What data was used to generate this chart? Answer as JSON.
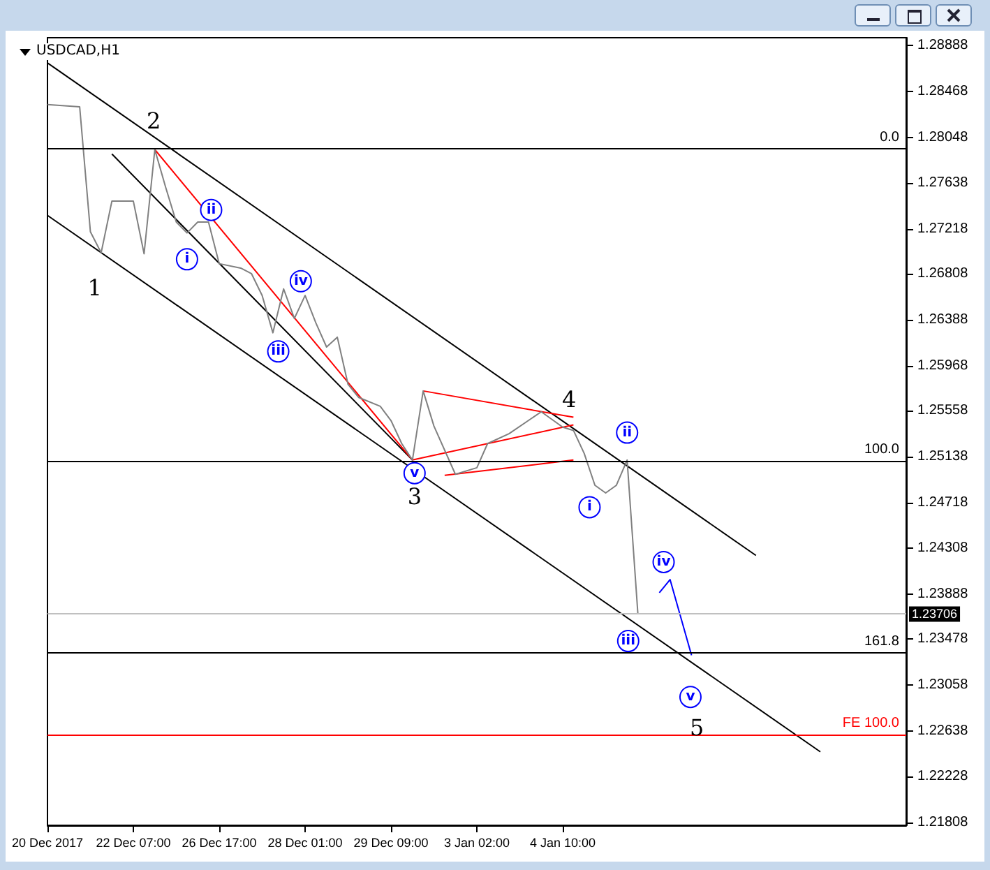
{
  "chart_data": {
    "type": "line",
    "title": "USDCAD,H1",
    "categories": [
      "20 Dec 2017",
      null,
      null,
      null,
      null,
      null,
      null,
      null,
      "22 Dec 07:00",
      null,
      null,
      null,
      null,
      null,
      null,
      null,
      "26 Dec 17:00",
      null,
      null,
      null,
      null,
      null,
      null,
      null,
      "28 Dec 01:00",
      null,
      null,
      null,
      null,
      null,
      null,
      null,
      "29 Dec 09:00",
      null,
      null,
      null,
      null,
      null,
      null,
      null,
      "3 Jan 02:00",
      null,
      null,
      null,
      null,
      null,
      null,
      null,
      "4 Jan 10:00",
      null,
      null,
      null,
      null,
      null,
      null,
      null,
      null,
      null,
      null,
      null,
      null,
      null,
      null,
      null,
      null,
      null,
      null,
      null,
      null,
      null,
      null,
      null,
      null,
      null,
      null,
      null,
      null,
      null,
      null,
      null,
      null
    ],
    "ylim": [
      1.2178,
      1.2896
    ],
    "yticks": [
      1.21808,
      1.22228,
      1.22638,
      1.23058,
      1.23478,
      1.23888,
      1.24308,
      1.24718,
      1.25138,
      1.25558,
      1.25968,
      1.26388,
      1.26808,
      1.27218,
      1.27638,
      1.28048,
      1.28468,
      1.28888
    ],
    "series": [
      {
        "color": "#808080",
        "values": [
          1.2835,
          null,
          null,
          1.2833,
          1.2719,
          1.27,
          1.2747,
          null,
          1.2747,
          1.2699,
          1.2794,
          1.276,
          1.2728,
          1.2718,
          1.2728,
          1.2728,
          1.269,
          null,
          1.2686,
          1.2681,
          1.2661,
          1.2627,
          1.2667,
          1.264,
          1.2661,
          1.2636,
          1.2614,
          1.2623,
          1.258,
          1.2568,
          null,
          1.256,
          1.2547,
          1.2526,
          1.2511,
          1.2574,
          1.2542,
          null,
          1.2498,
          null,
          1.2504,
          1.2526,
          null,
          1.2535,
          null,
          null,
          1.2555,
          null,
          1.2541,
          1.2538,
          1.2517,
          1.2488,
          1.2481,
          1.2488,
          1.2511,
          1.2371,
          null,
          null,
          null,
          null,
          null,
          null,
          null,
          null,
          null,
          null,
          null,
          null,
          null,
          null,
          null,
          null,
          null,
          null,
          null,
          null,
          null,
          null,
          null,
          null,
          null
        ]
      },
      {
        "color": "#000000",
        "values": [
          1.2873,
          null,
          null,
          null,
          null,
          null,
          null,
          null,
          null,
          null,
          null,
          null,
          null,
          null,
          null,
          null,
          null,
          null,
          null,
          null,
          null,
          null,
          null,
          null,
          null,
          null,
          null,
          null,
          null,
          null,
          null,
          null,
          null,
          null,
          null,
          null,
          null,
          null,
          null,
          null,
          null,
          null,
          null,
          null,
          null,
          null,
          null,
          null,
          null,
          null,
          null,
          null,
          null,
          null,
          null,
          null,
          null,
          null,
          null,
          null,
          null,
          null,
          null,
          null,
          null,
          null,
          1.2424,
          null,
          null,
          null,
          null,
          null,
          null,
          null,
          null,
          null,
          null,
          null,
          null,
          null,
          null
        ]
      },
      {
        "color": "#000000",
        "values": [
          1.2734,
          null,
          null,
          null,
          null,
          null,
          null,
          null,
          null,
          null,
          null,
          null,
          null,
          null,
          null,
          null,
          null,
          null,
          null,
          null,
          null,
          null,
          null,
          null,
          null,
          null,
          null,
          null,
          null,
          null,
          null,
          null,
          null,
          null,
          null,
          null,
          null,
          null,
          null,
          null,
          null,
          null,
          null,
          null,
          null,
          null,
          null,
          null,
          null,
          null,
          null,
          null,
          null,
          null,
          null,
          null,
          null,
          null,
          null,
          null,
          null,
          null,
          null,
          null,
          null,
          null,
          null,
          null,
          null,
          null,
          null,
          null,
          1.2245,
          null,
          null,
          null,
          null,
          null,
          null,
          null,
          null
        ]
      },
      {
        "color": "#000000",
        "values": [
          null,
          null,
          null,
          null,
          null,
          null,
          1.279,
          null,
          null,
          null,
          null,
          null,
          null,
          null,
          null,
          null,
          null,
          null,
          null,
          null,
          null,
          null,
          null,
          null,
          null,
          null,
          null,
          null,
          null,
          null,
          null,
          null,
          null,
          null,
          1.2511,
          null,
          null,
          null,
          null,
          null,
          null,
          null,
          null,
          null,
          null,
          null,
          null,
          null,
          null,
          null,
          null,
          null,
          null,
          null,
          null,
          null,
          null,
          null,
          null,
          null,
          null,
          null,
          null,
          null,
          null,
          null,
          null,
          null,
          null,
          null,
          null,
          null,
          null,
          null,
          null,
          null,
          null,
          null,
          null,
          null,
          null
        ]
      },
      {
        "color": "#ff0000",
        "values": [
          null,
          null,
          null,
          null,
          null,
          null,
          null,
          null,
          null,
          null,
          1.2794,
          null,
          null,
          null,
          null,
          null,
          null,
          null,
          null,
          null,
          null,
          null,
          null,
          null,
          null,
          null,
          null,
          null,
          null,
          null,
          null,
          null,
          null,
          null,
          1.2511,
          null,
          null,
          null,
          null,
          null,
          null,
          null,
          null,
          null,
          null,
          null,
          null,
          null,
          null,
          null,
          null,
          null,
          null,
          null,
          null,
          null,
          null,
          null,
          null,
          null,
          null,
          null,
          null,
          null,
          null,
          null,
          null,
          null,
          null,
          null,
          null,
          null,
          null,
          null,
          null,
          null,
          null,
          null,
          null,
          null,
          null
        ]
      },
      {
        "color": "#ff0000",
        "values": [
          null,
          null,
          null,
          null,
          null,
          null,
          null,
          null,
          null,
          null,
          null,
          null,
          null,
          null,
          null,
          null,
          null,
          null,
          null,
          null,
          null,
          null,
          null,
          null,
          null,
          null,
          null,
          null,
          null,
          null,
          null,
          null,
          null,
          null,
          null,
          1.2574,
          null,
          null,
          null,
          null,
          null,
          null,
          null,
          null,
          null,
          null,
          null,
          null,
          null,
          1.255,
          null,
          null,
          null,
          null,
          null,
          null,
          null,
          null,
          null,
          null,
          null,
          null,
          null,
          null,
          null,
          null,
          null,
          null,
          null,
          null,
          null,
          null,
          null,
          null,
          null,
          null,
          null,
          null,
          null,
          null,
          null
        ]
      },
      {
        "color": "#ff0000",
        "values": [
          null,
          null,
          null,
          null,
          null,
          null,
          null,
          null,
          null,
          null,
          null,
          null,
          null,
          null,
          null,
          null,
          null,
          null,
          null,
          null,
          null,
          null,
          null,
          null,
          null,
          null,
          null,
          null,
          null,
          null,
          null,
          null,
          null,
          null,
          null,
          null,
          null,
          1.2497,
          null,
          null,
          null,
          null,
          null,
          null,
          null,
          null,
          null,
          null,
          null,
          1.2511,
          null,
          null,
          null,
          null,
          null,
          null,
          null,
          null,
          null,
          null,
          null,
          null,
          null,
          null,
          null,
          null,
          null,
          null,
          null,
          null,
          null,
          null,
          null,
          null,
          null,
          null,
          null,
          null,
          null,
          null,
          null
        ]
      },
      {
        "color": "#ff0000",
        "values": [
          null,
          null,
          null,
          null,
          null,
          null,
          null,
          null,
          null,
          null,
          null,
          null,
          null,
          null,
          null,
          null,
          null,
          null,
          null,
          null,
          null,
          null,
          null,
          null,
          null,
          null,
          null,
          null,
          null,
          null,
          null,
          null,
          null,
          null,
          1.2511,
          null,
          null,
          null,
          null,
          null,
          null,
          null,
          null,
          null,
          null,
          null,
          null,
          null,
          null,
          1.2543,
          null,
          null,
          null,
          null,
          null,
          null,
          null,
          null,
          null,
          null,
          null,
          null,
          null,
          null,
          null,
          null,
          null,
          null,
          null,
          null,
          null,
          null,
          null,
          null,
          null,
          null,
          null,
          null,
          null,
          null,
          null
        ]
      },
      {
        "color": "#0000ff",
        "values": [
          null,
          null,
          null,
          null,
          null,
          null,
          null,
          null,
          null,
          null,
          null,
          null,
          null,
          null,
          null,
          null,
          null,
          null,
          null,
          null,
          null,
          null,
          null,
          null,
          null,
          null,
          null,
          null,
          null,
          null,
          null,
          null,
          null,
          null,
          null,
          null,
          null,
          null,
          null,
          null,
          null,
          null,
          null,
          null,
          null,
          null,
          null,
          null,
          null,
          null,
          null,
          null,
          null,
          null,
          null,
          null,
          null,
          1.239,
          1.2402,
          null,
          1.2333,
          null,
          null,
          null,
          null,
          null,
          null,
          null,
          null,
          null,
          null,
          null,
          null,
          null,
          null,
          null,
          null,
          null,
          null,
          null,
          null
        ]
      }
    ],
    "ref_lines": [
      {
        "axis": "y",
        "value": 1.2795,
        "color": "#000000"
      },
      {
        "axis": "y",
        "value": 1.251,
        "color": "#000000"
      },
      {
        "axis": "y",
        "value": 1.2335,
        "color": "#000000"
      },
      {
        "axis": "y",
        "value": 1.2261,
        "color": "#ff0000"
      },
      {
        "axis": "y",
        "value": 1.23706,
        "label": "1.23706",
        "color": "#c0c0c0"
      }
    ],
    "annotations": [
      "1",
      "2",
      "3",
      "4",
      "5",
      "i",
      "ii",
      "iii",
      "iv",
      "v",
      "i",
      "ii",
      "iii",
      "iv",
      "v",
      "0.0",
      "100.0",
      "161.8",
      "FE 100.0"
    ]
  }
}
